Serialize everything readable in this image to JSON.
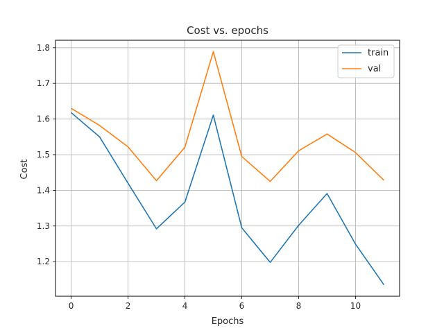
{
  "chart_data": {
    "type": "line",
    "title": "Cost vs. epochs",
    "xlabel": "Epochs",
    "ylabel": "Cost",
    "x": [
      0,
      1,
      2,
      3,
      4,
      5,
      6,
      7,
      8,
      9,
      10,
      11
    ],
    "series": [
      {
        "name": "train",
        "color": "#1f77b4",
        "values": [
          1.618,
          1.55,
          1.42,
          1.292,
          1.367,
          1.611,
          1.295,
          1.198,
          1.302,
          1.391,
          1.249,
          1.135
        ]
      },
      {
        "name": "val",
        "color": "#ff7f0e",
        "values": [
          1.63,
          1.582,
          1.522,
          1.427,
          1.521,
          1.789,
          1.495,
          1.425,
          1.511,
          1.558,
          1.506,
          1.428
        ]
      }
    ],
    "xlim": [
      -0.55,
      11.55
    ],
    "ylim": [
      1.103,
      1.821
    ],
    "xticks": [
      "0",
      "2",
      "4",
      "6",
      "8",
      "10"
    ],
    "yticks": [
      "1.2",
      "1.3",
      "1.4",
      "1.5",
      "1.6",
      "1.7",
      "1.8"
    ],
    "grid": true,
    "legend_position": "top-right"
  }
}
